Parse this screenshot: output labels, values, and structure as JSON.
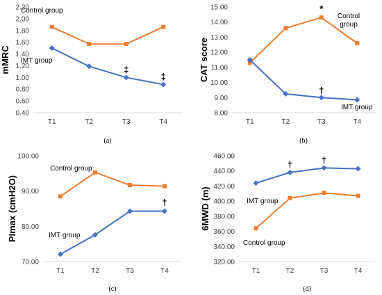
{
  "colors": {
    "control": "#ED7D31",
    "imt": "#4472C4"
  },
  "chart_data": [
    {
      "type": "line",
      "panel_label": "(a)",
      "ylabel": "mMRC",
      "categories": [
        "T1",
        "T2",
        "T3",
        "T4"
      ],
      "ylim": [
        0.4,
        2.2
      ],
      "yticks": [
        "0.40",
        "0.60",
        "0.80",
        "1.00",
        "1.20",
        "1.40",
        "1.60",
        "1.80",
        "2.00",
        "2.20"
      ],
      "series": [
        {
          "name": "Control group",
          "values": [
            1.86,
            1.57,
            1.57,
            1.86
          ]
        },
        {
          "name": "IMT group",
          "values": [
            1.5,
            1.19,
            1.0,
            0.88
          ]
        }
      ],
      "annotations": [
        {
          "text": "‡",
          "category": "T3",
          "value": 1.0
        },
        {
          "text": "‡",
          "category": "T4",
          "value": 0.88
        }
      ]
    },
    {
      "type": "line",
      "panel_label": "(b)",
      "ylabel": "CAT  score",
      "categories": [
        "T1",
        "T2",
        "T3",
        "T4"
      ],
      "ylim": [
        8.0,
        15.0
      ],
      "yticks": [
        "8.00",
        "9.00",
        "10.00",
        "11.00",
        "12.00",
        "13.00",
        "14.00",
        "15.00"
      ],
      "series": [
        {
          "name": "Control group",
          "label_lines": [
            "Control",
            "group"
          ],
          "values": [
            11.3,
            13.6,
            14.3,
            12.6
          ]
        },
        {
          "name": "IMT group",
          "values": [
            11.5,
            9.25,
            9.0,
            8.85
          ]
        }
      ],
      "annotations": [
        {
          "text": "*",
          "category": "T3",
          "value": 14.3
        },
        {
          "text": "†",
          "category": "T3",
          "value": 9.0
        }
      ]
    },
    {
      "type": "line",
      "panel_label": "(c)",
      "ylabel": "PImax (cmH2O)",
      "categories": [
        "T1",
        "T2",
        "T3",
        "T4"
      ],
      "ylim": [
        70.0,
        100.0
      ],
      "yticks": [
        "70.00",
        "80.00",
        "90.00",
        "100.00"
      ],
      "series": [
        {
          "name": "Control group",
          "values": [
            88.5,
            95.3,
            91.7,
            91.4
          ]
        },
        {
          "name": "IMT group",
          "values": [
            72.1,
            77.6,
            84.3,
            84.3
          ]
        }
      ],
      "annotations": [
        {
          "text": "†",
          "category": "T4",
          "value": 84.3
        }
      ]
    },
    {
      "type": "line",
      "panel_label": "(d)",
      "ylabel": "6MWD (m)",
      "categories": [
        "T1",
        "T2",
        "T3",
        "T4"
      ],
      "ylim": [
        320.0,
        460.0
      ],
      "yticks": [
        "320.00",
        "340.00",
        "360.00",
        "380.00",
        "400.00",
        "420.00",
        "440.00",
        "460.00"
      ],
      "series": [
        {
          "name": "Control group",
          "values": [
            364,
            404,
            411,
            407
          ]
        },
        {
          "name": "IMT group",
          "values": [
            424,
            438,
            444,
            443
          ]
        }
      ],
      "annotations": [
        {
          "text": "†",
          "category": "T2",
          "value": 438
        },
        {
          "text": "†",
          "category": "T3",
          "value": 444
        }
      ]
    }
  ]
}
